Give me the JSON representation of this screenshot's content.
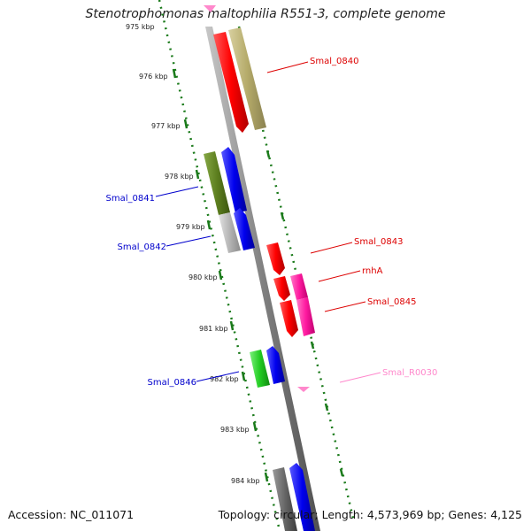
{
  "title": "Stenotrophomonas maltophilia R551-3, complete genome",
  "footer": {
    "accession": "Accession: NC_011071",
    "summary": "Topology: circular; Length: 4,573,969 bp; Genes: 4,125"
  },
  "axis": {
    "unit": "kbp",
    "tick_labels": [
      "975 kbp",
      "976 kbp",
      "977 kbp",
      "978 kbp",
      "979 kbp",
      "980 kbp",
      "981 kbp",
      "982 kbp",
      "983 kbp",
      "984 kbp"
    ]
  },
  "genes": [
    {
      "name": "Smal_0840",
      "strand": "reverse",
      "label_color": "#dd0000",
      "label_side": "right",
      "feature_colors": [
        "#ff0000",
        "#b5ab6a"
      ]
    },
    {
      "name": "Smal_0841",
      "strand": "forward",
      "label_color": "#0000cc",
      "label_side": "left",
      "feature_colors": [
        "#5d7f1f",
        "#0000ee"
      ]
    },
    {
      "name": "Smal_0842",
      "strand": "forward",
      "label_color": "#0000cc",
      "label_side": "left",
      "feature_colors": [
        "#b4b4b4",
        "#0000ee"
      ]
    },
    {
      "name": "Smal_0843",
      "strand": "reverse",
      "label_color": "#dd0000",
      "label_side": "right",
      "feature_colors": [
        "#ff0000"
      ]
    },
    {
      "name": "rnhA",
      "strand": "reverse",
      "label_color": "#dd0000",
      "label_side": "right",
      "feature_colors": [
        "#ff0000",
        "#ff1aa0"
      ]
    },
    {
      "name": "Smal_0845",
      "strand": "reverse",
      "label_color": "#dd0000",
      "label_side": "right",
      "feature_colors": [
        "#ff0000",
        "#ff1aa0"
      ]
    },
    {
      "name": "Smal_0846",
      "strand": "forward",
      "label_color": "#0000cc",
      "label_side": "left",
      "feature_colors": [
        "#22cc22",
        "#0000ee"
      ]
    },
    {
      "name": "Smal_R0030",
      "strand": "reverse",
      "label_color": "#ff88cc",
      "label_side": "right",
      "feature_colors": [
        "#ff88cc"
      ]
    }
  ],
  "colors": {
    "backbone": "#808080",
    "gc_dots": "#1a7a1a",
    "reverse_cds": "#ff0000",
    "forward_cds": "#0000ee",
    "rna": "#ff88cc"
  }
}
